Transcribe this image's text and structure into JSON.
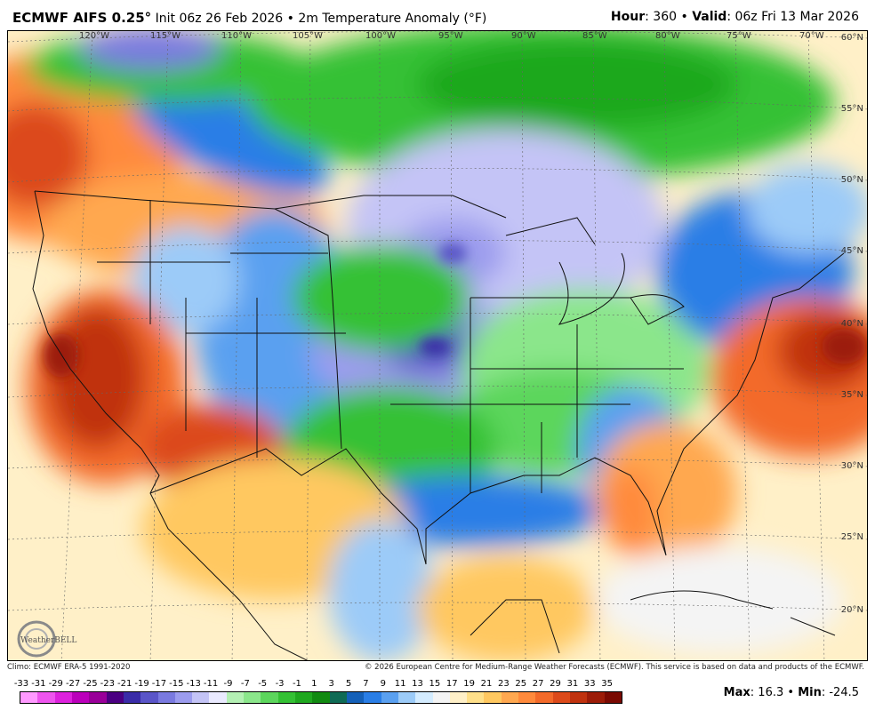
{
  "header": {
    "model": "ECMWF AIFS 0.25",
    "deg": "°",
    "init": " Init 06z 26 Feb 2026",
    "sep": " • ",
    "field": "2m Temperature Anomaly (°F)",
    "hour_label": "Hour",
    "hour_value": ": 360",
    "valid_label": "Valid",
    "valid_value": ": 06z Fri 13 Mar 2026"
  },
  "lon_labels": [
    "120°W",
    "115°W",
    "110°W",
    "105°W",
    "100°W",
    "95°W",
    "90°W",
    "85°W",
    "80°W",
    "75°W",
    "70°W"
  ],
  "lat_labels": [
    "60°N",
    "55°N",
    "50°N",
    "45°N",
    "40°N",
    "35°N",
    "30°N",
    "25°N",
    "20°N"
  ],
  "logo": "WeatherBELL",
  "footer": {
    "climo": "Climo: ECMWF ERA-5 1991-2020",
    "copyright": "© 2026 European Centre for Medium-Range Weather Forecasts (ECMWF). This service is based on data and products of the ECMWF."
  },
  "colorbar": {
    "labels": [
      "-33",
      "-31",
      "-29",
      "-27",
      "-25",
      "-23",
      "-21",
      "-19",
      "-17",
      "-15",
      "-13",
      "-11",
      "-9",
      "-7",
      "-5",
      "-3",
      "-1",
      "1",
      "3",
      "5",
      "7",
      "9",
      "11",
      "13",
      "15",
      "17",
      "19",
      "21",
      "23",
      "25",
      "27",
      "29",
      "31",
      "33",
      "35"
    ],
    "colors": [
      "#ff99ff",
      "#ee55ee",
      "#dd22dd",
      "#bb00bb",
      "#990099",
      "#4b0082",
      "#3a2ca8",
      "#5a55c8",
      "#7a7ae0",
      "#9c9cee",
      "#c4c4f6",
      "#eaeaff",
      "#b4f0b4",
      "#8be68b",
      "#5cd65c",
      "#34c134",
      "#1fa81f",
      "#118a11",
      "#0f6b55",
      "#1560b8",
      "#2a7ee6",
      "#5aa0f0",
      "#9ccbf8",
      "#d4ecff",
      "#f4f4f4",
      "#fff0c8",
      "#ffe08a",
      "#ffc860",
      "#ffa850",
      "#ff8a3c",
      "#f36a2a",
      "#dc4a1a",
      "#c0320e",
      "#9c1c08",
      "#7a0a02"
    ]
  },
  "stats": {
    "max_label": "Max",
    "max_value": ": 16.3",
    "sep": " • ",
    "min_label": "Min",
    "min_value": ": -24.5"
  }
}
